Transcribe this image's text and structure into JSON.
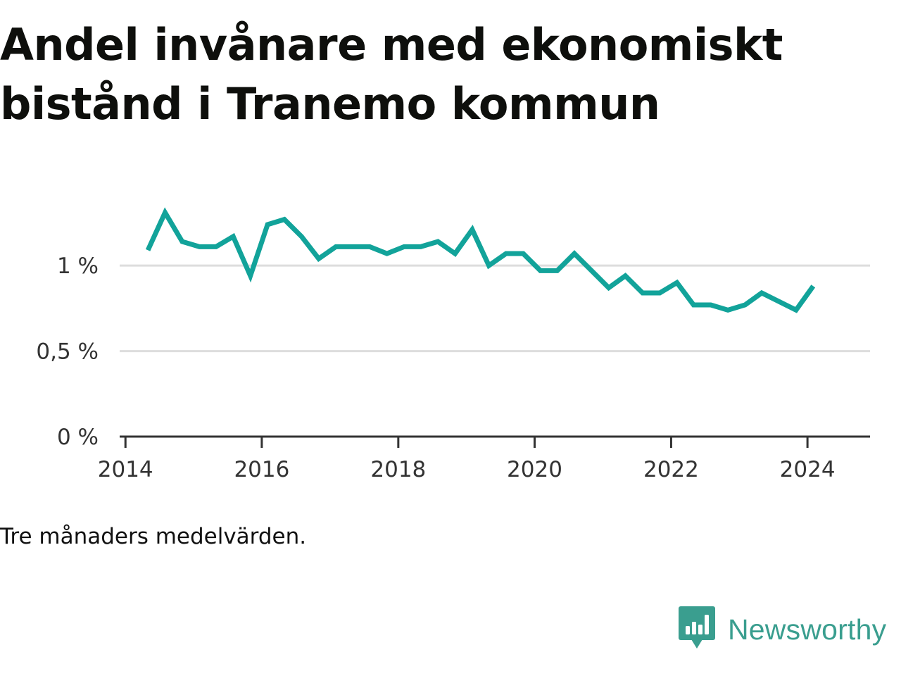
{
  "title": "Andel invånare med ekonomiskt bistånd i Tranemo kommun",
  "note": "Tre månaders medelvärden.",
  "brand": {
    "name": "Newsworthy",
    "logo_icon": "newsworthy-chart-bubble-icon",
    "color": "#3a9e8f"
  },
  "chart_data": {
    "type": "line",
    "x_label_format": "year",
    "xlim": [
      "2013-12-01",
      "2024-12-01"
    ],
    "ylim": [
      0,
      1.4
    ],
    "y_ticks": [
      {
        "value": 0,
        "label": "0 %"
      },
      {
        "value": 0.5,
        "label": "0,5 %"
      },
      {
        "value": 1,
        "label": "1 %"
      }
    ],
    "x_ticks": [
      {
        "value": "2014-01-01",
        "label": "2014"
      },
      {
        "value": "2016-01-01",
        "label": "2016"
      },
      {
        "value": "2018-01-01",
        "label": "2018"
      },
      {
        "value": "2020-01-01",
        "label": "2020"
      },
      {
        "value": "2022-01-01",
        "label": "2022"
      },
      {
        "value": "2024-01-01",
        "label": "2024"
      }
    ],
    "grid": true,
    "line_color": "#12a39a",
    "series": [
      {
        "values": [
          [
            "2014-05-01",
            1.09
          ],
          [
            "2014-08-01",
            1.31
          ],
          [
            "2014-11-01",
            1.14
          ],
          [
            "2015-02-01",
            1.11
          ],
          [
            "2015-05-01",
            1.11
          ],
          [
            "2015-08-01",
            1.17
          ],
          [
            "2015-11-01",
            0.94
          ],
          [
            "2016-02-01",
            1.24
          ],
          [
            "2016-05-01",
            1.27
          ],
          [
            "2016-08-01",
            1.17
          ],
          [
            "2016-11-01",
            1.04
          ],
          [
            "2017-02-01",
            1.11
          ],
          [
            "2017-05-01",
            1.11
          ],
          [
            "2017-08-01",
            1.11
          ],
          [
            "2017-11-01",
            1.07
          ],
          [
            "2018-02-01",
            1.11
          ],
          [
            "2018-05-01",
            1.11
          ],
          [
            "2018-08-01",
            1.14
          ],
          [
            "2018-11-01",
            1.07
          ],
          [
            "2019-02-01",
            1.21
          ],
          [
            "2019-05-01",
            1.0
          ],
          [
            "2019-08-01",
            1.07
          ],
          [
            "2019-11-01",
            1.07
          ],
          [
            "2020-02-01",
            0.97
          ],
          [
            "2020-05-01",
            0.97
          ],
          [
            "2020-08-01",
            1.07
          ],
          [
            "2020-11-01",
            0.97
          ],
          [
            "2021-02-01",
            0.87
          ],
          [
            "2021-05-01",
            0.94
          ],
          [
            "2021-08-01",
            0.84
          ],
          [
            "2021-11-01",
            0.84
          ],
          [
            "2022-02-01",
            0.9
          ],
          [
            "2022-05-01",
            0.77
          ],
          [
            "2022-08-01",
            0.77
          ],
          [
            "2022-11-01",
            0.74
          ],
          [
            "2023-02-01",
            0.77
          ],
          [
            "2023-05-01",
            0.84
          ],
          [
            "2023-08-01",
            0.79
          ],
          [
            "2023-11-01",
            0.74
          ],
          [
            "2024-02-01",
            0.88
          ]
        ]
      }
    ]
  }
}
